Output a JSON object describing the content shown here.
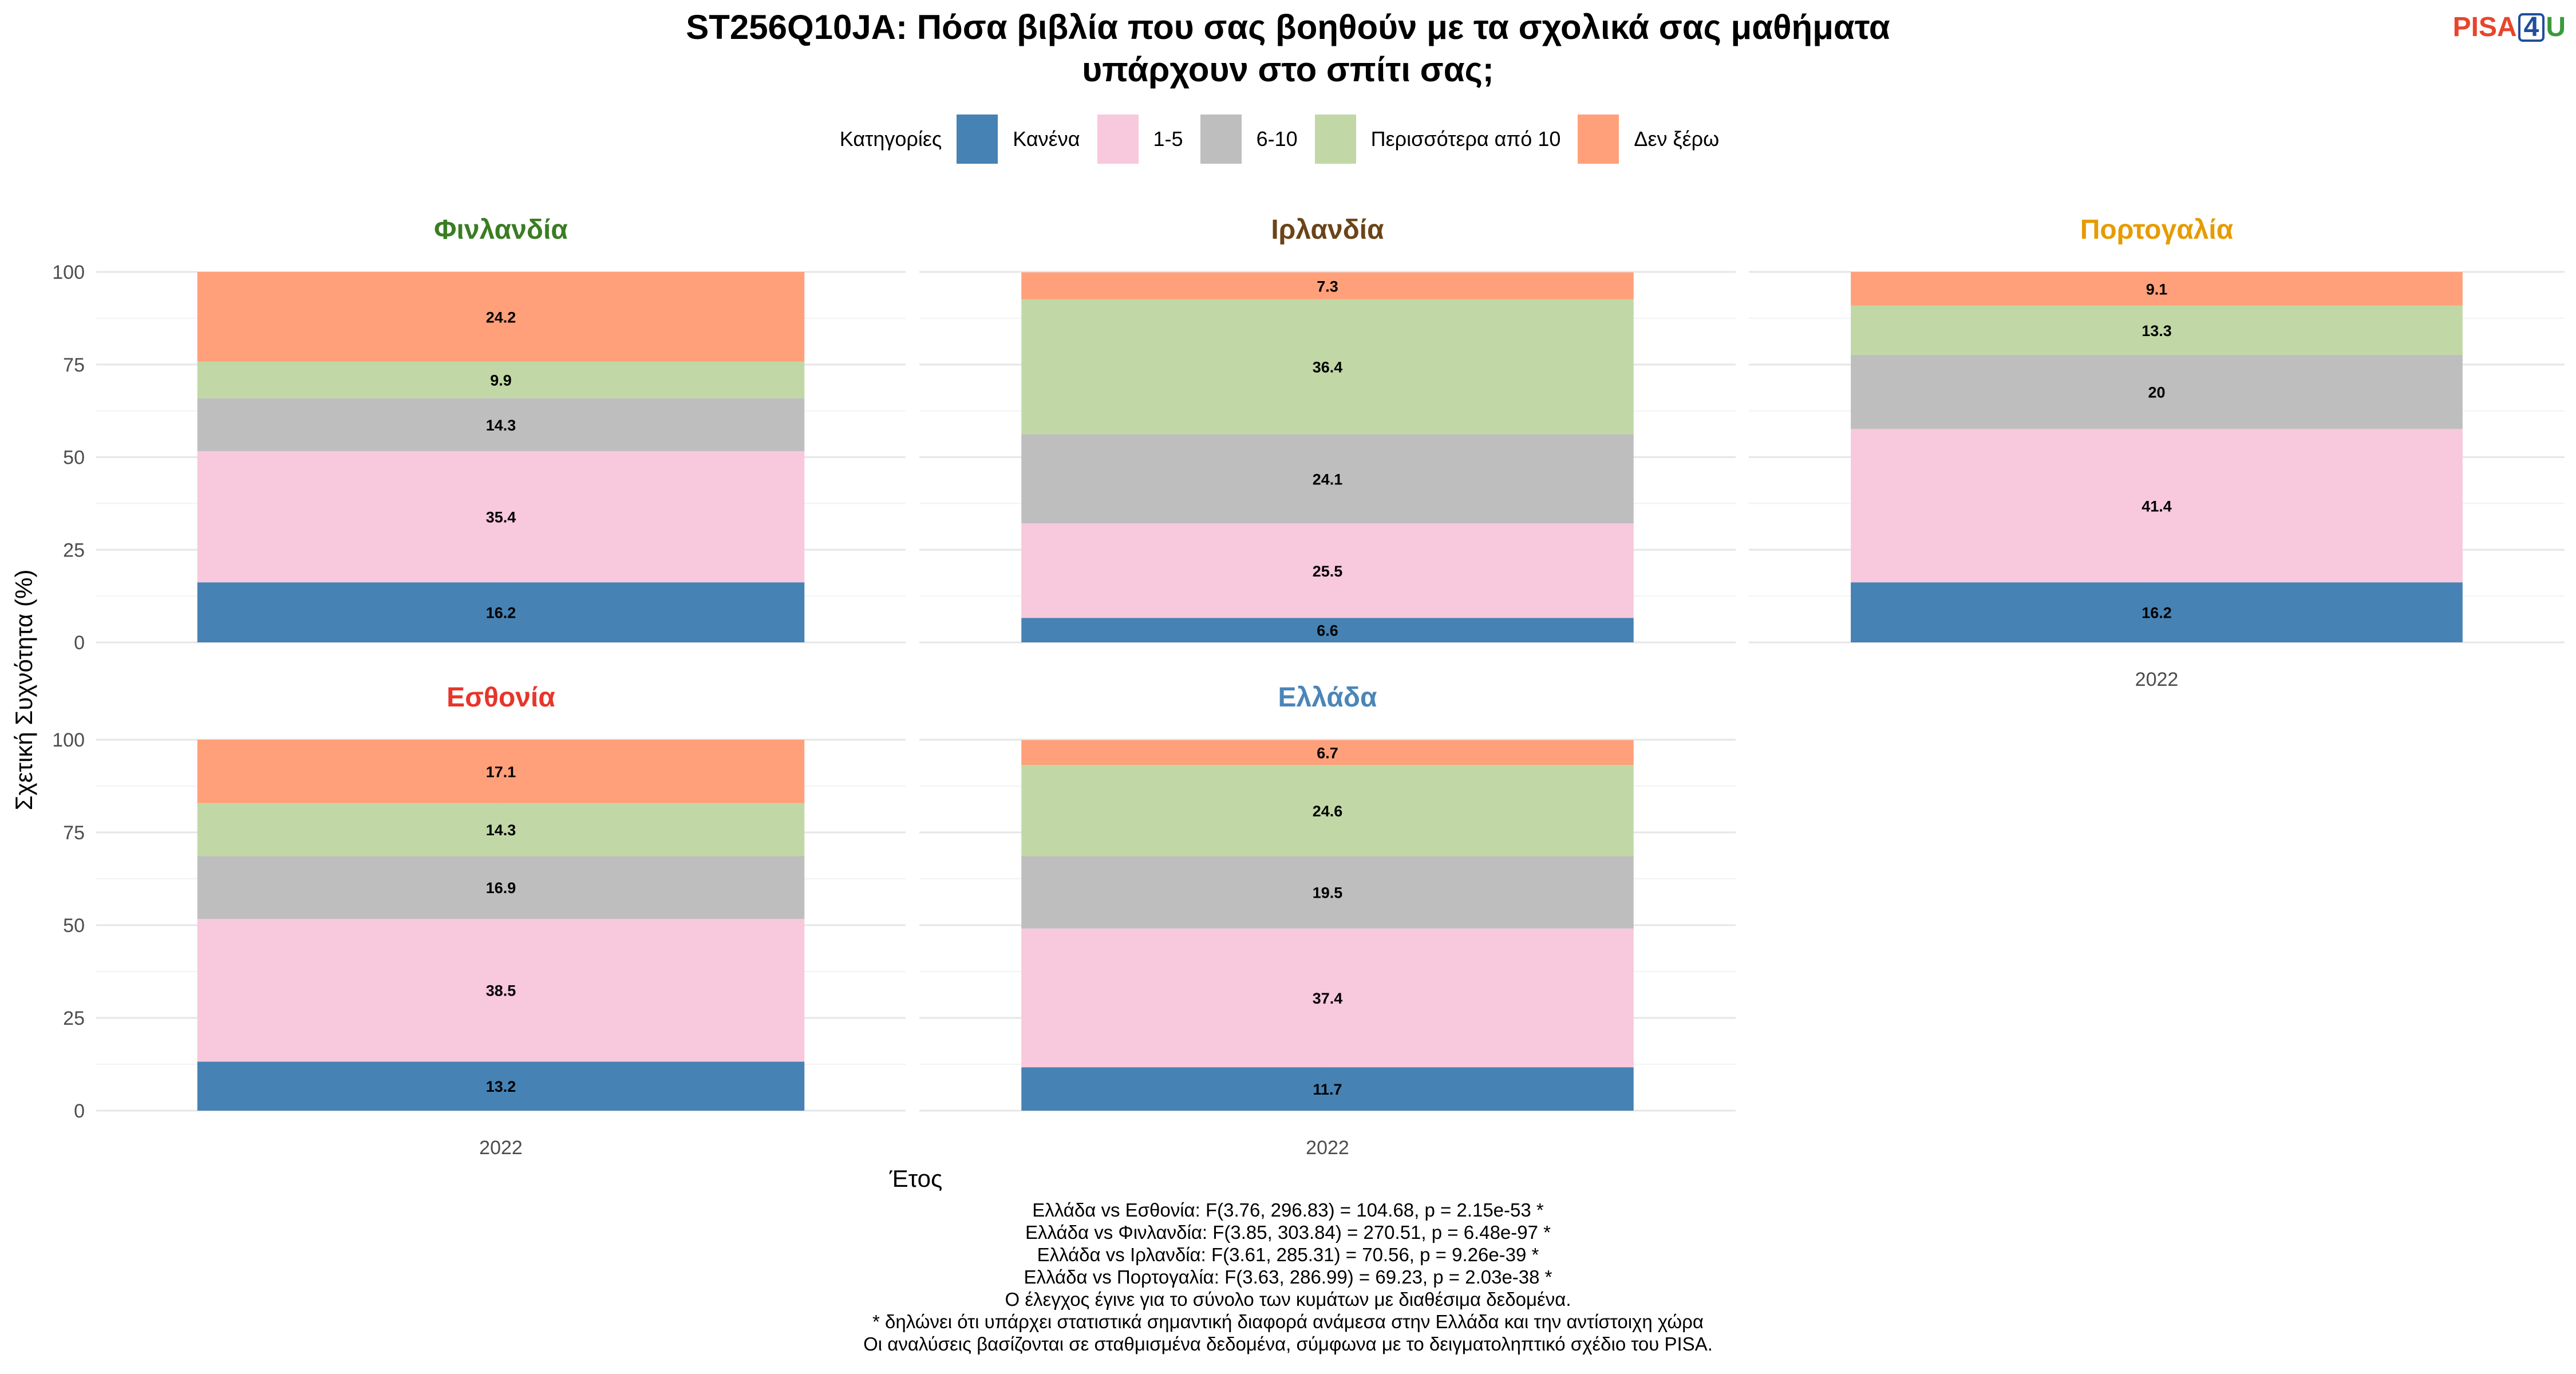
{
  "title": {
    "line1": "ST256Q10JA: Πόσα βιβλία που σας βοηθούν με τα σχολικά σας μαθήματα",
    "line2": "υπάρχουν στο σπίτι σας;"
  },
  "logo": {
    "left": "PISA",
    "middle": "4",
    "right": "U"
  },
  "legend": {
    "title": "Κατηγορίες"
  },
  "chart_data": {
    "type": "bar",
    "stacked": true,
    "x_label": "Έτος",
    "y_label": "Σχετική Συχνότητα (%)",
    "ylim": [
      0,
      100
    ],
    "y_ticks": [
      0,
      25,
      50,
      75,
      100
    ],
    "grid": true,
    "legend_position": "top",
    "categories": [
      {
        "name": "Κανένα",
        "color": "#4682b4"
      },
      {
        "name": "1-5",
        "color": "#f8c8dc"
      },
      {
        "name": "6-10",
        "color": "#bebebe"
      },
      {
        "name": "Περισσότερα από 10",
        "color": "#c1d8a6"
      },
      {
        "name": "Δεν ξέρω",
        "color": "#ffa07a"
      }
    ],
    "panels": [
      {
        "country": "Φινλανδία",
        "color": "#3a7d22",
        "year": "2022",
        "values": [
          16.2,
          35.4,
          14.3,
          9.9,
          24.2
        ],
        "labels": [
          "16.2",
          "35.4",
          "14.3",
          "9.9",
          "24.2"
        ]
      },
      {
        "country": "Ιρλανδία",
        "color": "#6b4418",
        "year": "2022",
        "values": [
          6.6,
          25.5,
          24.1,
          36.4,
          7.3
        ],
        "labels": [
          "6.6",
          "25.5",
          "24.1",
          "36.4",
          "7.3"
        ]
      },
      {
        "country": "Πορτογαλία",
        "color": "#e69b00",
        "year": "2022",
        "values": [
          16.2,
          41.4,
          20,
          13.3,
          9.1
        ],
        "labels": [
          "16.2",
          "41.4",
          "20",
          "13.3",
          "9.1"
        ]
      },
      {
        "country": "Εσθονία",
        "color": "#e8352a",
        "year": "2022",
        "values": [
          13.2,
          38.5,
          16.9,
          14.3,
          17.1
        ],
        "labels": [
          "13.2",
          "38.5",
          "16.9",
          "14.3",
          "17.1"
        ]
      },
      {
        "country": "Ελλάδα",
        "color": "#4a86b8",
        "year": "2022",
        "values": [
          11.7,
          37.4,
          19.5,
          24.6,
          6.7
        ],
        "labels": [
          "11.7",
          "37.4",
          "19.5",
          "24.6",
          "6.7"
        ]
      }
    ]
  },
  "notes": [
    "Ελλάδα vs Εσθονία: F(3.76, 296.83) = 104.68, p = 2.15e-53 *",
    "Ελλάδα vs Φινλανδία: F(3.85, 303.84) = 270.51, p = 6.48e-97 *",
    "Ελλάδα vs Ιρλανδία: F(3.61, 285.31) = 70.56, p = 9.26e-39 *",
    "Ελλάδα vs Πορτογαλία: F(3.63, 286.99) = 69.23, p = 2.03e-38 *",
    "Ο έλεγχος έγινε για το σύνολο των κυμάτων με διαθέσιμα δεδομένα.",
    "* δηλώνει ότι υπάρχει στατιστικά σημαντική διαφορά ανάμεσα στην Ελλάδα και την αντίστοιχη χώρα",
    "Οι αναλύσεις βασίζονται σε σταθμισμένα δεδομένα, σύμφωνα με το δειγματοληπτικό σχέδιο του PISA."
  ]
}
